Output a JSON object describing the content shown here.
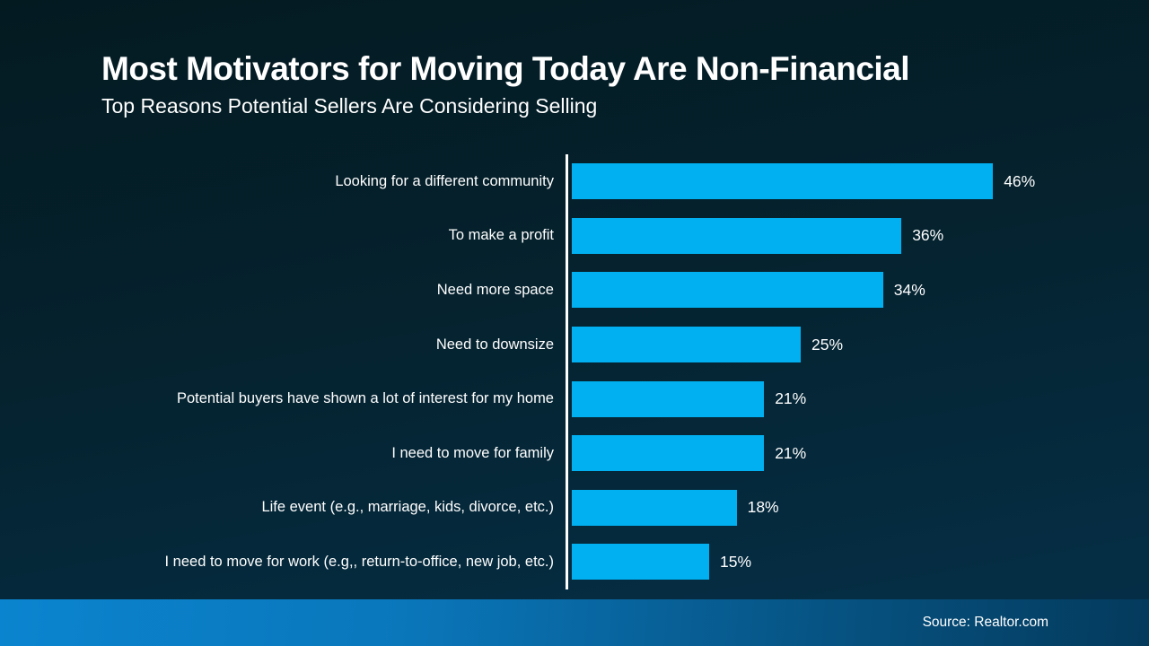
{
  "page": {
    "title": "Most Motivators for Moving Today Are Non-Financial",
    "subtitle": "Top Reasons Potential Sellers Are Considering Selling",
    "source": "Source: Realtor.com"
  },
  "colors": {
    "bar": "#00b0f0",
    "axis": "#ffffff",
    "text": "#ffffff",
    "background_top": "#041a21",
    "background_bottom": "#053049",
    "footer_gradient_left": "#0b84cf",
    "footer_gradient_right": "#043a5c"
  },
  "chart_data": {
    "type": "bar",
    "orientation": "horizontal",
    "title": "Most Motivators for Moving Today Are Non-Financial",
    "subtitle": "Top Reasons Potential Sellers Are Considering Selling",
    "categories": [
      "Looking for a different community",
      "To make a profit",
      "Need more space",
      "Need to downsize",
      "Potential buyers have shown a lot of interest for my home",
      "I need to move for family",
      "Life event (e.g., marriage, kids, divorce, etc.)",
      "I need to move for work (e.g,, return-to-office, new job, etc.)"
    ],
    "values": [
      46,
      36,
      34,
      25,
      21,
      21,
      18,
      15
    ],
    "value_suffix": "%",
    "xlim": [
      0,
      50
    ],
    "grid": false,
    "legend": false,
    "data_labels": "outside-end",
    "category_labels": "right-aligned-left-of-axis"
  }
}
